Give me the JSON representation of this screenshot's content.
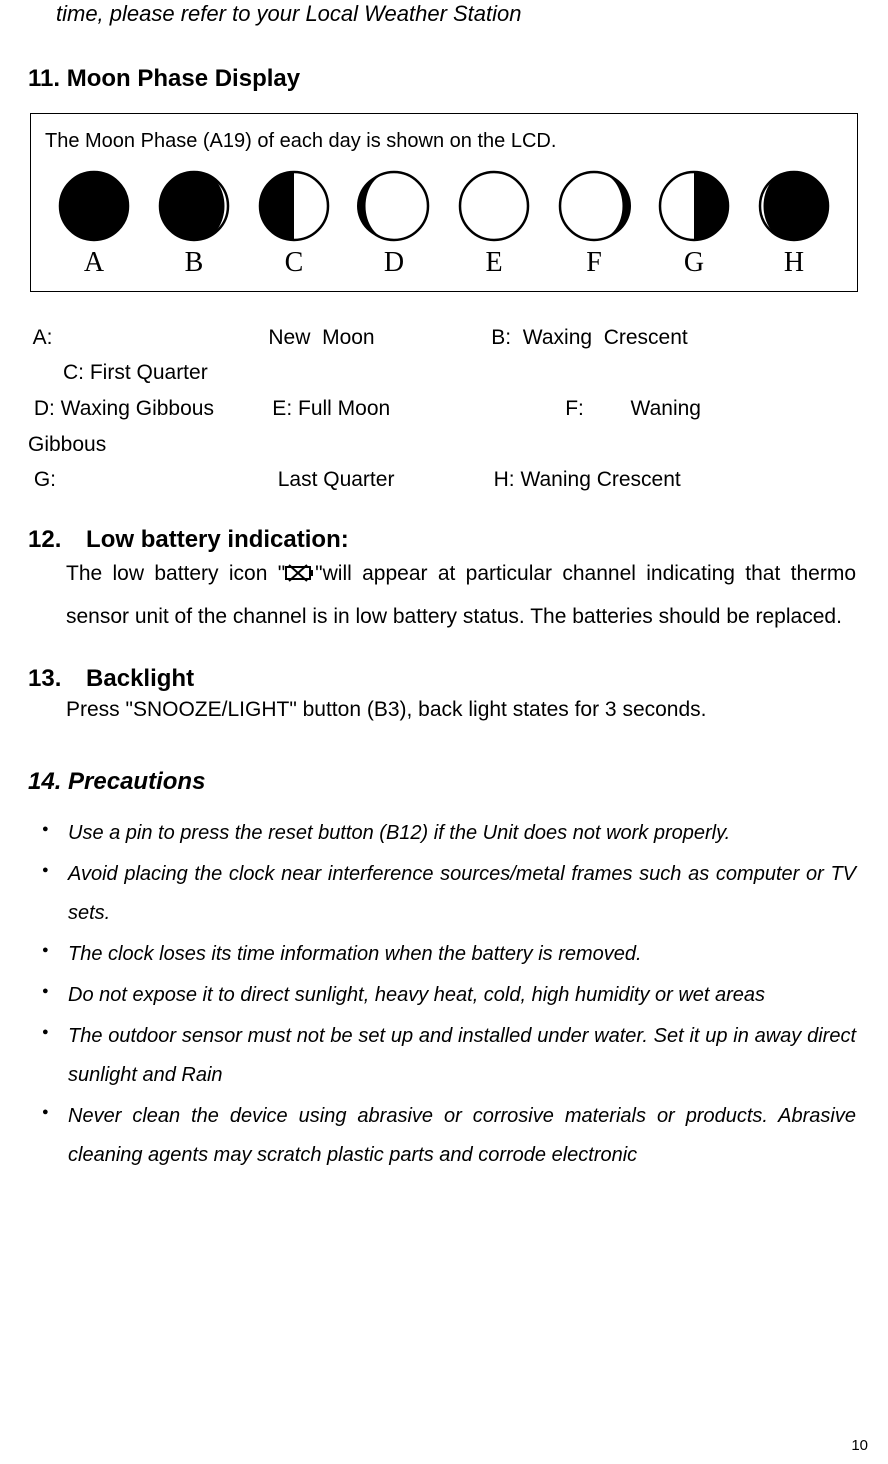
{
  "top_line": "time, please refer to your Local Weather Station",
  "section11": {
    "heading": "11. Moon Phase Display",
    "box_caption": "The Moon Phase (A19) of each day is shown on the LCD.",
    "moons": [
      {
        "letter": "A",
        "type": "new"
      },
      {
        "letter": "B",
        "type": "waxing-crescent"
      },
      {
        "letter": "C",
        "type": "first-quarter"
      },
      {
        "letter": "D",
        "type": "waxing-gibbous"
      },
      {
        "letter": "E",
        "type": "full"
      },
      {
        "letter": "F",
        "type": "waning-gibbous"
      },
      {
        "letter": "G",
        "type": "last-quarter"
      },
      {
        "letter": "H",
        "type": "waning-crescent"
      }
    ],
    "legend_line1a": " A:                                     New  Moon                    B:  Waxing  Crescent",
    "legend_line1b": "      C: First Quarter",
    "legend_line2": " D: Waxing Gibbous          E: Full Moon                              F:        Waning",
    "legend_line2b": "Gibbous",
    "legend_line3": " G:                                      Last Quarter                 H: Waning Crescent"
  },
  "section12": {
    "heading_num": "12.",
    "heading_text": "Low battery indication:",
    "body_a": "The  low  battery  icon  \"",
    "body_b": "\"will  appear  at  particular  channel indicating that thermo sensor unit of the channel is in low battery status. The batteries should be replaced."
  },
  "section13": {
    "heading_num": "13.",
    "heading_text": "Backlight",
    "body": "Press \"SNOOZE/LIGHT\" button (B3), back light states for 3 seconds."
  },
  "section14": {
    "heading": "14. Precautions",
    "items": [
      "Use a pin to press the reset button (B12) if the Unit does not work properly.",
      "Avoid  placing  the  clock  near  interference  sources/metal  frames  such  as computer or TV sets.",
      "The clock loses its time information when the battery is removed.",
      "Do not expose it to direct sunlight, heavy heat, cold, high humidity or wet areas",
      "The outdoor sensor must not be set up and installed under water. Set it up in away direct sunlight and Rain",
      "Never clean the device using abrasive or corrosive materials or products. Abrasive cleaning agents may scratch plastic parts and corrode electronic"
    ]
  },
  "page_number": "10",
  "colors": {
    "text": "#000000",
    "background": "#ffffff",
    "border": "#000000"
  }
}
